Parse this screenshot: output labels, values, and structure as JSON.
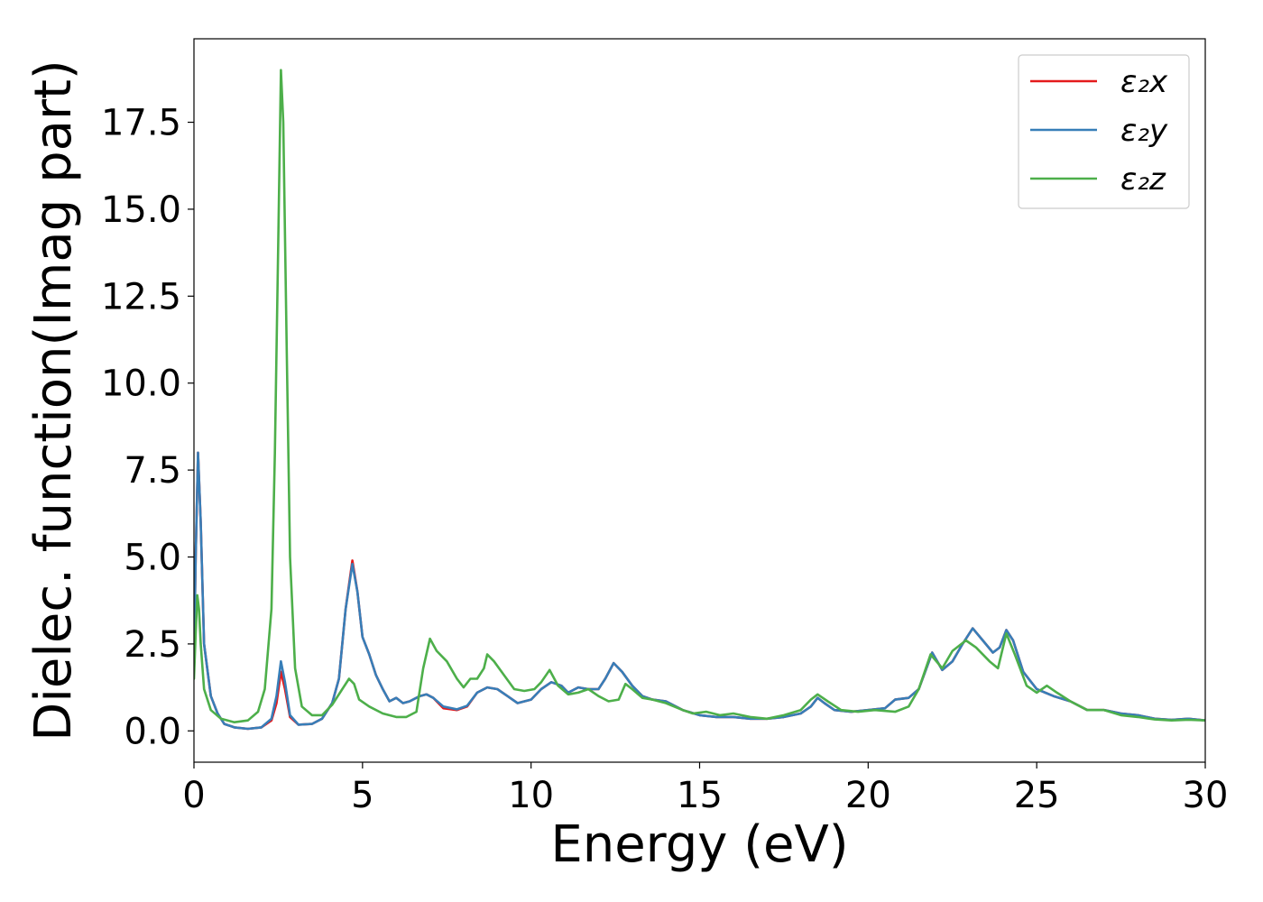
{
  "chart_data": {
    "type": "line",
    "title": "",
    "xlabel": "Energy (eV)",
    "ylabel": "Dielec. function(Imag part)",
    "xlim": [
      0,
      30
    ],
    "ylim": [
      -0.9,
      19.9
    ],
    "xticks": [
      "0",
      "5",
      "10",
      "15",
      "20",
      "25",
      "30"
    ],
    "yticks": [
      "0.0",
      "2.5",
      "5.0",
      "7.5",
      "10.0",
      "12.5",
      "15.0",
      "17.5"
    ],
    "grid": false,
    "legend_position": "top-right",
    "series": [
      {
        "name": "ε₂x",
        "color": "#e41a1c",
        "points": [
          [
            0,
            2.0
          ],
          [
            0.05,
            5.0
          ],
          [
            0.12,
            8.0
          ],
          [
            0.2,
            6.0
          ],
          [
            0.3,
            2.5
          ],
          [
            0.5,
            1.0
          ],
          [
            0.7,
            0.5
          ],
          [
            0.9,
            0.2
          ],
          [
            1.2,
            0.1
          ],
          [
            1.6,
            0.06
          ],
          [
            2.0,
            0.1
          ],
          [
            2.3,
            0.3
          ],
          [
            2.45,
            0.8
          ],
          [
            2.58,
            1.7
          ],
          [
            2.7,
            1.2
          ],
          [
            2.85,
            0.4
          ],
          [
            3.1,
            0.18
          ],
          [
            3.5,
            0.2
          ],
          [
            3.8,
            0.35
          ],
          [
            4.1,
            0.8
          ],
          [
            4.3,
            1.5
          ],
          [
            4.5,
            3.5
          ],
          [
            4.7,
            4.9
          ],
          [
            4.85,
            4.0
          ],
          [
            5.0,
            2.7
          ],
          [
            5.2,
            2.2
          ],
          [
            5.4,
            1.6
          ],
          [
            5.6,
            1.2
          ],
          [
            5.8,
            0.85
          ],
          [
            6.0,
            0.95
          ],
          [
            6.2,
            0.8
          ],
          [
            6.4,
            0.85
          ],
          [
            6.7,
            1.0
          ],
          [
            6.9,
            1.05
          ],
          [
            7.1,
            0.95
          ],
          [
            7.4,
            0.65
          ],
          [
            7.8,
            0.6
          ],
          [
            8.1,
            0.7
          ],
          [
            8.4,
            1.1
          ],
          [
            8.7,
            1.25
          ],
          [
            9.0,
            1.2
          ],
          [
            9.3,
            1.0
          ],
          [
            9.6,
            0.8
          ],
          [
            10.0,
            0.9
          ],
          [
            10.3,
            1.2
          ],
          [
            10.6,
            1.4
          ],
          [
            10.9,
            1.3
          ],
          [
            11.1,
            1.1
          ],
          [
            11.4,
            1.25
          ],
          [
            11.7,
            1.2
          ],
          [
            12.0,
            1.2
          ],
          [
            12.2,
            1.5
          ],
          [
            12.45,
            1.95
          ],
          [
            12.7,
            1.7
          ],
          [
            13.0,
            1.3
          ],
          [
            13.3,
            1.0
          ],
          [
            13.6,
            0.9
          ],
          [
            14.0,
            0.85
          ],
          [
            14.5,
            0.6
          ],
          [
            15.0,
            0.45
          ],
          [
            15.5,
            0.4
          ],
          [
            16.0,
            0.4
          ],
          [
            16.5,
            0.35
          ],
          [
            17.0,
            0.35
          ],
          [
            17.5,
            0.4
          ],
          [
            18.0,
            0.5
          ],
          [
            18.3,
            0.7
          ],
          [
            18.5,
            0.95
          ],
          [
            18.7,
            0.8
          ],
          [
            19.0,
            0.6
          ],
          [
            19.5,
            0.55
          ],
          [
            20.0,
            0.6
          ],
          [
            20.5,
            0.65
          ],
          [
            20.8,
            0.9
          ],
          [
            21.2,
            0.95
          ],
          [
            21.5,
            1.2
          ],
          [
            21.9,
            2.25
          ],
          [
            22.2,
            1.75
          ],
          [
            22.5,
            2.0
          ],
          [
            22.8,
            2.5
          ],
          [
            23.1,
            2.95
          ],
          [
            23.4,
            2.6
          ],
          [
            23.7,
            2.25
          ],
          [
            23.9,
            2.4
          ],
          [
            24.1,
            2.9
          ],
          [
            24.3,
            2.6
          ],
          [
            24.6,
            1.7
          ],
          [
            25.0,
            1.2
          ],
          [
            25.5,
            1.0
          ],
          [
            26.0,
            0.85
          ],
          [
            26.5,
            0.6
          ],
          [
            27.0,
            0.6
          ],
          [
            27.5,
            0.5
          ],
          [
            28.0,
            0.45
          ],
          [
            28.5,
            0.35
          ],
          [
            29.0,
            0.32
          ],
          [
            29.5,
            0.35
          ],
          [
            30.0,
            0.3
          ]
        ]
      },
      {
        "name": "ε₂y",
        "color": "#377eb8",
        "points": [
          [
            0,
            2.0
          ],
          [
            0.05,
            5.0
          ],
          [
            0.12,
            8.0
          ],
          [
            0.2,
            6.0
          ],
          [
            0.3,
            2.5
          ],
          [
            0.5,
            1.0
          ],
          [
            0.7,
            0.5
          ],
          [
            0.9,
            0.2
          ],
          [
            1.2,
            0.1
          ],
          [
            1.6,
            0.06
          ],
          [
            2.0,
            0.1
          ],
          [
            2.3,
            0.35
          ],
          [
            2.45,
            1.0
          ],
          [
            2.58,
            2.0
          ],
          [
            2.7,
            1.4
          ],
          [
            2.85,
            0.45
          ],
          [
            3.1,
            0.18
          ],
          [
            3.5,
            0.2
          ],
          [
            3.8,
            0.35
          ],
          [
            4.1,
            0.8
          ],
          [
            4.3,
            1.5
          ],
          [
            4.5,
            3.5
          ],
          [
            4.7,
            4.8
          ],
          [
            4.85,
            4.0
          ],
          [
            5.0,
            2.7
          ],
          [
            5.2,
            2.2
          ],
          [
            5.4,
            1.6
          ],
          [
            5.6,
            1.2
          ],
          [
            5.8,
            0.85
          ],
          [
            6.0,
            0.95
          ],
          [
            6.2,
            0.8
          ],
          [
            6.4,
            0.85
          ],
          [
            6.7,
            1.0
          ],
          [
            6.9,
            1.05
          ],
          [
            7.1,
            0.95
          ],
          [
            7.4,
            0.7
          ],
          [
            7.8,
            0.62
          ],
          [
            8.1,
            0.72
          ],
          [
            8.4,
            1.1
          ],
          [
            8.7,
            1.25
          ],
          [
            9.0,
            1.2
          ],
          [
            9.3,
            1.0
          ],
          [
            9.6,
            0.8
          ],
          [
            10.0,
            0.9
          ],
          [
            10.3,
            1.2
          ],
          [
            10.6,
            1.4
          ],
          [
            10.9,
            1.3
          ],
          [
            11.1,
            1.1
          ],
          [
            11.4,
            1.25
          ],
          [
            11.7,
            1.2
          ],
          [
            12.0,
            1.2
          ],
          [
            12.2,
            1.5
          ],
          [
            12.45,
            1.95
          ],
          [
            12.7,
            1.7
          ],
          [
            13.0,
            1.3
          ],
          [
            13.3,
            1.0
          ],
          [
            13.6,
            0.9
          ],
          [
            14.0,
            0.85
          ],
          [
            14.5,
            0.6
          ],
          [
            15.0,
            0.45
          ],
          [
            15.5,
            0.4
          ],
          [
            16.0,
            0.4
          ],
          [
            16.5,
            0.35
          ],
          [
            17.0,
            0.35
          ],
          [
            17.5,
            0.4
          ],
          [
            18.0,
            0.5
          ],
          [
            18.3,
            0.7
          ],
          [
            18.5,
            0.95
          ],
          [
            18.7,
            0.8
          ],
          [
            19.0,
            0.6
          ],
          [
            19.5,
            0.55
          ],
          [
            20.0,
            0.6
          ],
          [
            20.5,
            0.65
          ],
          [
            20.8,
            0.9
          ],
          [
            21.2,
            0.95
          ],
          [
            21.5,
            1.2
          ],
          [
            21.9,
            2.25
          ],
          [
            22.2,
            1.75
          ],
          [
            22.5,
            2.0
          ],
          [
            22.8,
            2.5
          ],
          [
            23.1,
            2.95
          ],
          [
            23.4,
            2.6
          ],
          [
            23.7,
            2.25
          ],
          [
            23.9,
            2.4
          ],
          [
            24.1,
            2.9
          ],
          [
            24.3,
            2.6
          ],
          [
            24.6,
            1.7
          ],
          [
            25.0,
            1.2
          ],
          [
            25.5,
            1.0
          ],
          [
            26.0,
            0.85
          ],
          [
            26.5,
            0.6
          ],
          [
            27.0,
            0.6
          ],
          [
            27.5,
            0.5
          ],
          [
            28.0,
            0.45
          ],
          [
            28.5,
            0.35
          ],
          [
            29.0,
            0.32
          ],
          [
            29.5,
            0.35
          ],
          [
            30.0,
            0.3
          ]
        ]
      },
      {
        "name": "ε₂z",
        "color": "#4daf4a",
        "points": [
          [
            0,
            1.5
          ],
          [
            0.05,
            2.8
          ],
          [
            0.1,
            3.9
          ],
          [
            0.15,
            3.5
          ],
          [
            0.2,
            2.5
          ],
          [
            0.3,
            1.2
          ],
          [
            0.5,
            0.6
          ],
          [
            0.8,
            0.35
          ],
          [
            1.2,
            0.25
          ],
          [
            1.6,
            0.3
          ],
          [
            1.9,
            0.55
          ],
          [
            2.1,
            1.2
          ],
          [
            2.3,
            3.5
          ],
          [
            2.4,
            8.0
          ],
          [
            2.5,
            14.0
          ],
          [
            2.58,
            19.0
          ],
          [
            2.65,
            17.5
          ],
          [
            2.75,
            11.0
          ],
          [
            2.85,
            5.0
          ],
          [
            3.0,
            1.8
          ],
          [
            3.2,
            0.7
          ],
          [
            3.5,
            0.45
          ],
          [
            3.8,
            0.45
          ],
          [
            4.1,
            0.75
          ],
          [
            4.4,
            1.2
          ],
          [
            4.6,
            1.5
          ],
          [
            4.75,
            1.35
          ],
          [
            4.9,
            0.9
          ],
          [
            5.2,
            0.7
          ],
          [
            5.6,
            0.5
          ],
          [
            6.0,
            0.4
          ],
          [
            6.3,
            0.4
          ],
          [
            6.6,
            0.55
          ],
          [
            6.8,
            1.8
          ],
          [
            7.0,
            2.65
          ],
          [
            7.2,
            2.3
          ],
          [
            7.5,
            2.0
          ],
          [
            7.8,
            1.5
          ],
          [
            8.0,
            1.25
          ],
          [
            8.2,
            1.5
          ],
          [
            8.4,
            1.5
          ],
          [
            8.6,
            1.8
          ],
          [
            8.7,
            2.2
          ],
          [
            8.9,
            2.0
          ],
          [
            9.2,
            1.6
          ],
          [
            9.5,
            1.2
          ],
          [
            9.8,
            1.15
          ],
          [
            10.1,
            1.2
          ],
          [
            10.3,
            1.4
          ],
          [
            10.55,
            1.75
          ],
          [
            10.8,
            1.3
          ],
          [
            11.1,
            1.05
          ],
          [
            11.4,
            1.1
          ],
          [
            11.7,
            1.2
          ],
          [
            12.0,
            1.0
          ],
          [
            12.3,
            0.85
          ],
          [
            12.6,
            0.9
          ],
          [
            12.8,
            1.35
          ],
          [
            13.0,
            1.2
          ],
          [
            13.3,
            0.95
          ],
          [
            13.6,
            0.9
          ],
          [
            14.0,
            0.8
          ],
          [
            14.5,
            0.6
          ],
          [
            14.8,
            0.5
          ],
          [
            15.2,
            0.55
          ],
          [
            15.6,
            0.45
          ],
          [
            16.0,
            0.5
          ],
          [
            16.5,
            0.4
          ],
          [
            17.0,
            0.35
          ],
          [
            17.5,
            0.45
          ],
          [
            18.0,
            0.6
          ],
          [
            18.3,
            0.9
          ],
          [
            18.5,
            1.05
          ],
          [
            18.8,
            0.85
          ],
          [
            19.2,
            0.6
          ],
          [
            19.7,
            0.55
          ],
          [
            20.2,
            0.6
          ],
          [
            20.8,
            0.55
          ],
          [
            21.2,
            0.7
          ],
          [
            21.5,
            1.2
          ],
          [
            21.85,
            2.2
          ],
          [
            22.2,
            1.8
          ],
          [
            22.5,
            2.3
          ],
          [
            22.9,
            2.6
          ],
          [
            23.2,
            2.4
          ],
          [
            23.6,
            2.0
          ],
          [
            23.85,
            1.8
          ],
          [
            24.1,
            2.8
          ],
          [
            24.35,
            2.2
          ],
          [
            24.7,
            1.3
          ],
          [
            25.0,
            1.1
          ],
          [
            25.3,
            1.3
          ],
          [
            25.6,
            1.1
          ],
          [
            26.0,
            0.85
          ],
          [
            26.5,
            0.6
          ],
          [
            27.0,
            0.6
          ],
          [
            27.5,
            0.45
          ],
          [
            28.0,
            0.4
          ],
          [
            28.5,
            0.33
          ],
          [
            29.0,
            0.3
          ],
          [
            29.5,
            0.32
          ],
          [
            30.0,
            0.3
          ]
        ]
      }
    ]
  }
}
